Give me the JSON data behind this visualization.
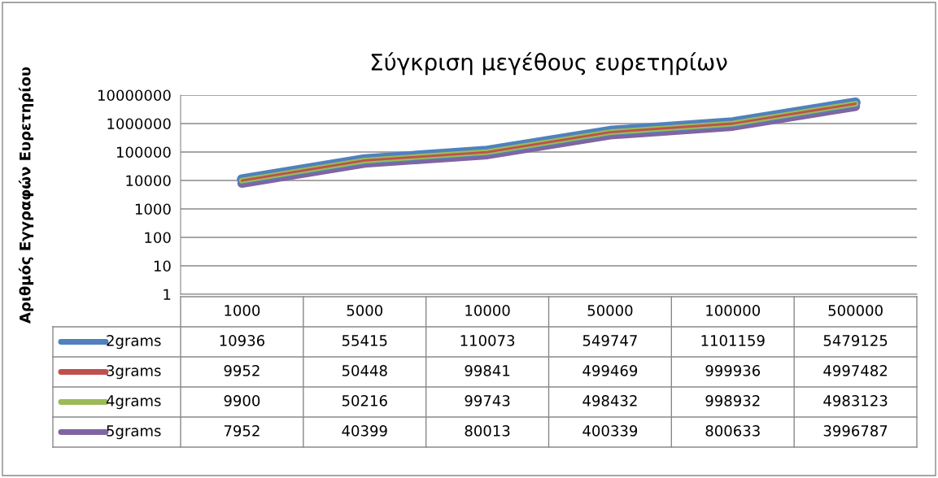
{
  "chart_data": {
    "type": "line",
    "title": "Σύγκριση μεγέθους ευρετηρίων",
    "ylabel": "Αριθμός Εγγραφών Ευρετηρίου",
    "categories": [
      "1000",
      "5000",
      "10000",
      "50000",
      "100000",
      "500000"
    ],
    "series": [
      {
        "name": "2grams",
        "color": "#4f81bd",
        "values": [
          10936,
          55415,
          110073,
          549747,
          1101159,
          5479125
        ]
      },
      {
        "name": "3grams",
        "color": "#c0504d",
        "values": [
          9952,
          50448,
          99841,
          499469,
          999936,
          4997482
        ]
      },
      {
        "name": "4grams",
        "color": "#9bbb59",
        "values": [
          9900,
          50216,
          99743,
          498432,
          998932,
          4983123
        ]
      },
      {
        "name": "5grams",
        "color": "#8064a2",
        "values": [
          7952,
          40399,
          80013,
          400339,
          800633,
          3996787
        ]
      }
    ],
    "log": "y",
    "ylim": [
      1,
      10000000
    ],
    "yticks": [
      1,
      10,
      100,
      1000,
      10000,
      100000,
      1000000,
      10000000
    ],
    "grid": "y",
    "legend": "bottom",
    "data_labels": true,
    "marker": "none",
    "line_style": "solid"
  }
}
